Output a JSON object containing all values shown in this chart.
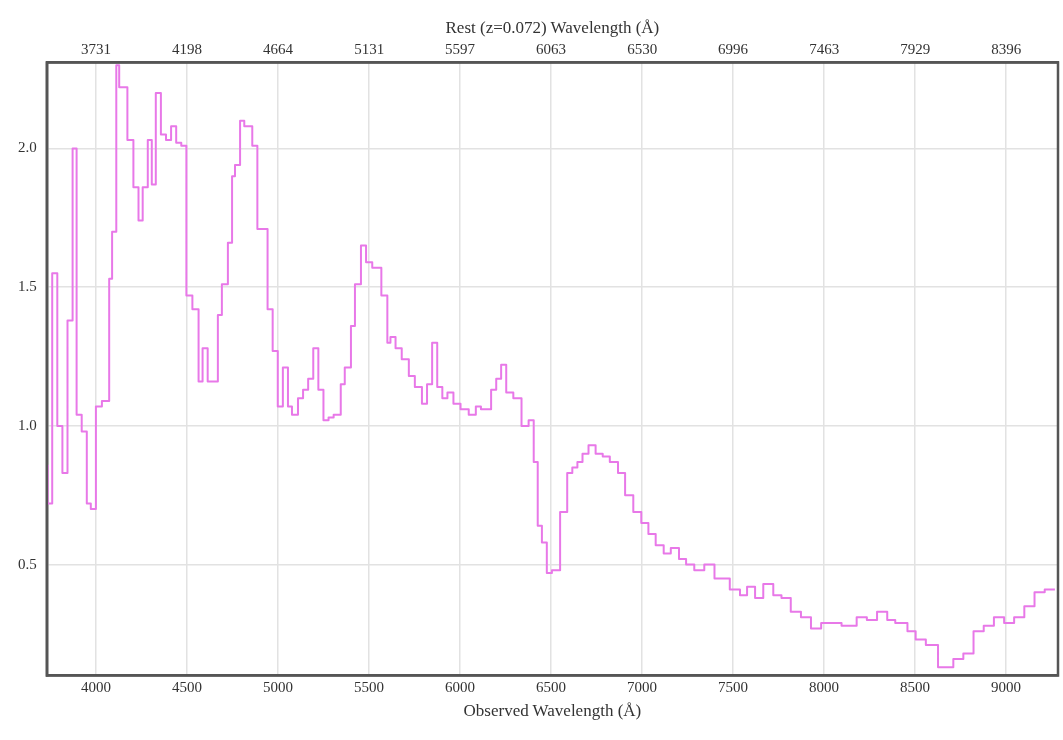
{
  "chart_data": {
    "type": "step",
    "xlabel": "Observed Wavelength (Å)",
    "x2label": "Rest (z=0.072) Wavelength (Å)",
    "x": [
      3735,
      3760,
      3788,
      3816,
      3844,
      3872,
      3894,
      3922,
      3950,
      3972,
      4000,
      4033,
      4073,
      4089,
      4112,
      4128,
      4173,
      4206,
      4234,
      4257,
      4285,
      4307,
      4329,
      4357,
      4385,
      4413,
      4441,
      4469,
      4497,
      4530,
      4564,
      4586,
      4614,
      4670,
      4692,
      4725,
      4748,
      4764,
      4792,
      4815,
      4859,
      4887,
      4943,
      4971,
      4999,
      5027,
      5055,
      5077,
      5110,
      5138,
      5166,
      5194,
      5222,
      5250,
      5278,
      5306,
      5345,
      5367,
      5401,
      5423,
      5456,
      5484,
      5518,
      5568,
      5601,
      5618,
      5646,
      5680,
      5719,
      5752,
      5791,
      5819,
      5847,
      5875,
      5903,
      5931,
      5964,
      6003,
      6048,
      6087,
      6115,
      6171,
      6199,
      6226,
      6254,
      6293,
      6338,
      6377,
      6405,
      6427,
      6450,
      6477,
      6505,
      6550,
      6589,
      6617,
      6645,
      6673,
      6706,
      6745,
      6784,
      6823,
      6868,
      6907,
      6952,
      6996,
      7035,
      7075,
      7119,
      7158,
      7203,
      7242,
      7287,
      7342,
      7398,
      7482,
      7538,
      7577,
      7621,
      7666,
      7721,
      7766,
      7817,
      7873,
      7928,
      7984,
      8040,
      8096,
      8179,
      8235,
      8291,
      8347,
      8391,
      8458,
      8503,
      8559,
      8626,
      8710,
      8765,
      8821,
      8877,
      8933,
      8989,
      9044,
      9100,
      9156,
      9212,
      9268
    ],
    "series": [
      {
        "color": "#e878e8",
        "values": [
          0.86,
          0.72,
          1.55,
          1.0,
          0.83,
          1.38,
          2.0,
          1.04,
          0.98,
          0.72,
          0.7,
          1.07,
          1.09,
          1.53,
          1.7,
          2.3,
          2.22,
          2.03,
          1.86,
          1.74,
          1.86,
          2.03,
          1.87,
          2.2,
          2.05,
          2.03,
          2.08,
          2.02,
          2.01,
          1.47,
          1.42,
          1.16,
          1.28,
          1.16,
          1.4,
          1.51,
          1.66,
          1.9,
          1.94,
          2.1,
          2.08,
          2.01,
          1.71,
          1.42,
          1.27,
          1.07,
          1.21,
          1.07,
          1.04,
          1.1,
          1.13,
          1.17,
          1.28,
          1.13,
          1.02,
          1.03,
          1.04,
          1.15,
          1.21,
          1.36,
          1.51,
          1.65,
          1.59,
          1.57,
          1.47,
          1.3,
          1.32,
          1.28,
          1.24,
          1.18,
          1.14,
          1.08,
          1.15,
          1.3,
          1.14,
          1.1,
          1.12,
          1.08,
          1.06,
          1.04,
          1.07,
          1.06,
          1.13,
          1.17,
          1.22,
          1.12,
          1.1,
          1.0,
          1.02,
          0.87,
          0.64,
          0.58,
          0.47,
          0.48,
          0.69,
          0.83,
          0.85,
          0.87,
          0.9,
          0.93,
          0.9,
          0.89,
          0.87,
          0.83,
          0.75,
          0.69,
          0.65,
          0.61,
          0.57,
          0.54,
          0.56,
          0.52,
          0.5,
          0.48,
          0.5,
          0.45,
          0.41,
          0.39,
          0.42,
          0.38,
          0.43,
          0.39,
          0.38,
          0.33,
          0.31,
          0.27,
          0.29,
          0.29,
          0.28,
          0.31,
          0.3,
          0.33,
          0.3,
          0.29,
          0.26,
          0.23,
          0.21,
          0.13,
          0.16,
          0.18,
          0.26,
          0.28,
          0.31,
          0.29,
          0.31,
          0.35,
          0.4,
          0.41
        ]
      }
    ],
    "xlim": [
      3730,
      9285
    ],
    "xticks": [
      4000,
      4500,
      5000,
      5500,
      6000,
      6500,
      7000,
      7500,
      8000,
      8500,
      9000
    ],
    "x2lim": [
      3479,
      8661
    ],
    "x2ticks": [
      3731,
      4198,
      4664,
      5131,
      5597,
      6063,
      6530,
      6996,
      7463,
      7929,
      8396
    ],
    "ylim": [
      0.1,
      2.31
    ],
    "yticks": [
      {
        "value": 0.5,
        "label": "0.5"
      },
      {
        "value": 1.0,
        "label": "1.0"
      },
      {
        "value": 1.5,
        "label": "1.5"
      },
      {
        "value": 2.0,
        "label": "2.0"
      }
    ],
    "grid": true,
    "marker": "none",
    "line_style": "solid"
  }
}
